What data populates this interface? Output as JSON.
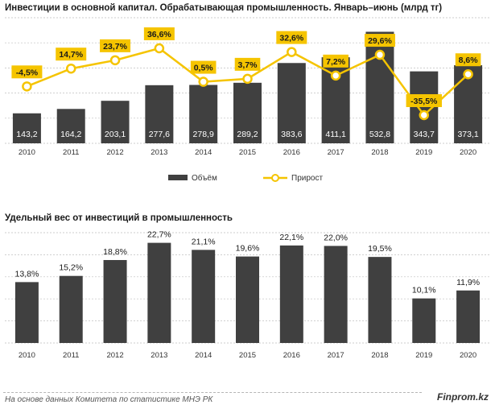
{
  "chart_data": [
    {
      "type": "bar",
      "title": "Инвестиции в основной капитал. Обрабатывающая промышленность. Январь–июнь (млрд тг)",
      "categories": [
        "2010",
        "2011",
        "2012",
        "2013",
        "2014",
        "2015",
        "2016",
        "2017",
        "2018",
        "2019",
        "2020"
      ],
      "series": [
        {
          "name": "Объём",
          "type": "bar",
          "values": [
            143.2,
            164.2,
            203.1,
            277.6,
            278.9,
            289.2,
            383.6,
            411.1,
            532.8,
            343.7,
            373.1
          ],
          "labels": [
            "143,2",
            "164,2",
            "203,1",
            "277,6",
            "278,9",
            "289,2",
            "383,6",
            "411,1",
            "532,8",
            "343,7",
            "373,1"
          ],
          "color": "#404040"
        },
        {
          "name": "Прирост",
          "type": "line",
          "values": [
            -4.5,
            14.7,
            23.7,
            36.6,
            0.5,
            3.7,
            32.6,
            7.2,
            29.6,
            -35.5,
            8.6
          ],
          "labels": [
            "-4,5%",
            "14,7%",
            "23,7%",
            "36,6%",
            "0,5%",
            "3,7%",
            "32,6%",
            "7,2%",
            "29,6%",
            "-35,5%",
            "8,6%"
          ],
          "color": "#f5c400"
        }
      ],
      "legend": {
        "position": "bottom",
        "items": [
          "Объём",
          "Прирост"
        ]
      },
      "grid": true
    },
    {
      "type": "bar",
      "title": "Удельный вес от инвестиций  в промышленность",
      "categories": [
        "2010",
        "2011",
        "2012",
        "2013",
        "2014",
        "2015",
        "2016",
        "2017",
        "2018",
        "2019",
        "2020"
      ],
      "series": [
        {
          "name": "Удельный вес",
          "values": [
            13.8,
            15.2,
            18.8,
            22.7,
            21.1,
            19.6,
            22.1,
            22.0,
            19.5,
            10.1,
            11.9
          ],
          "labels": [
            "13,8%",
            "15,2%",
            "18,8%",
            "22,7%",
            "21,1%",
            "19,6%",
            "22,1%",
            "22,0%",
            "19,5%",
            "10,1%",
            "11,9%"
          ],
          "color": "#404040"
        }
      ],
      "grid": true
    }
  ],
  "footer": {
    "source": "На основе данных  Комитета по статистике МНЭ РК",
    "brand": "Finprom.kz"
  }
}
